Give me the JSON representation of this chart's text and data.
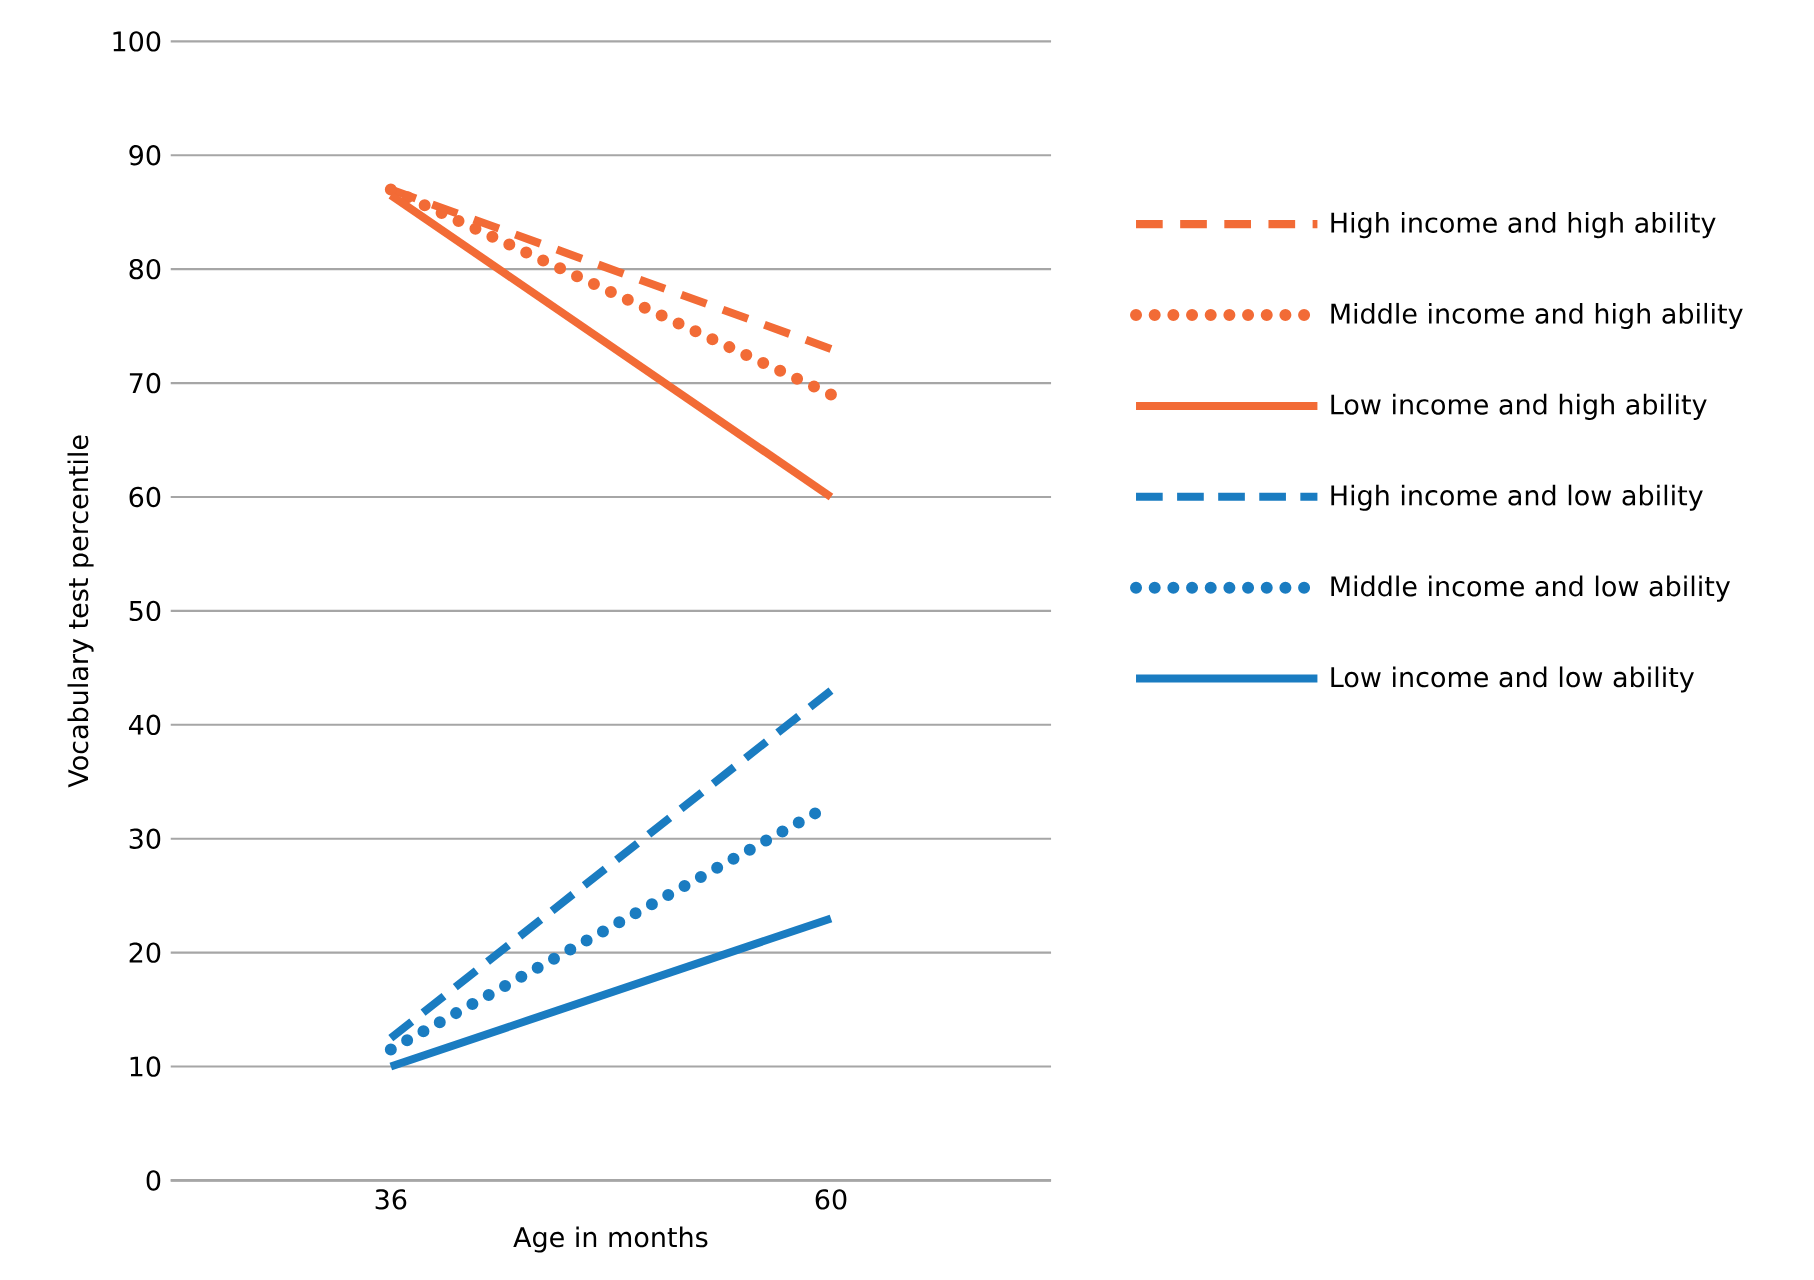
{
  "chart_data": {
    "type": "line",
    "xlabel": "Age in months",
    "ylabel": "Vocabulary test percentile",
    "categories": [
      "36",
      "60"
    ],
    "series": [
      {
        "name": "High income and high ability",
        "color": "#f26b36",
        "line_style": "dashed",
        "values": [
          87,
          73
        ]
      },
      {
        "name": "Middle income and high ability",
        "color": "#f26b36",
        "line_style": "dotted",
        "values": [
          87,
          69
        ]
      },
      {
        "name": "Low income and high ability",
        "color": "#f26b36",
        "line_style": "solid",
        "values": [
          86.5,
          60
        ]
      },
      {
        "name": "High income and low ability",
        "color": "#1a7cc1",
        "line_style": "dashed",
        "values": [
          12.5,
          43
        ]
      },
      {
        "name": "Middle income and low ability",
        "color": "#1a7cc1",
        "line_style": "dotted",
        "values": [
          11.5,
          33
        ]
      },
      {
        "name": "Low income and low ability",
        "color": "#1a7cc1",
        "line_style": "solid",
        "values": [
          10,
          23
        ]
      }
    ],
    "ylim": [
      0,
      100
    ],
    "yticks": [
      0,
      10,
      20,
      30,
      40,
      50,
      60,
      70,
      80,
      90,
      100
    ],
    "grid": "y",
    "legend": "right",
    "marker": "none"
  }
}
